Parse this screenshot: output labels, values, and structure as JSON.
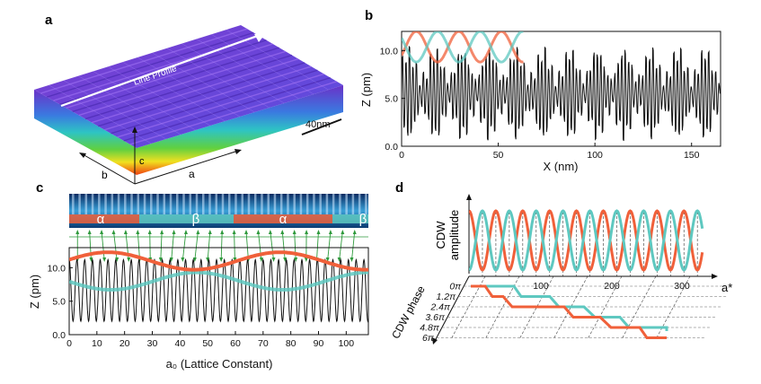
{
  "panels": {
    "a": {
      "label": "a",
      "annotation": "Line Profile",
      "scale_bar": "40nm",
      "axes": {
        "a": "a",
        "b": "b",
        "c": "c"
      }
    },
    "b": {
      "label": "b",
      "xlabel": "X (nm)",
      "ylabel": "Z (pm)",
      "xticks": [
        "0",
        "50",
        "100",
        "150"
      ],
      "yticks": [
        "0.0",
        "5.0",
        "10.0"
      ]
    },
    "c": {
      "label": "c",
      "domains": [
        "α",
        "β",
        "α",
        "β"
      ],
      "xlabel": "a₀ (Lattice Constant)",
      "ylabel": "Z (pm)",
      "xticks": [
        "0",
        "10",
        "20",
        "30",
        "40",
        "50",
        "60",
        "70",
        "80",
        "90",
        "100"
      ],
      "yticks": [
        "0.0",
        "5.0",
        "10.0"
      ]
    },
    "d": {
      "label": "d",
      "amplitude_label_line1": "CDW",
      "amplitude_label_line2": "amplitude",
      "phase_label": "CDW phase",
      "xaxis_label": "a*",
      "xticks": [
        "100",
        "200",
        "300"
      ],
      "phase_ticks": [
        "0π",
        "1.2π",
        "2.4π",
        "3.6π",
        "4.8π",
        "6π"
      ]
    }
  },
  "colors": {
    "orange": "#f0603a",
    "teal": "#5ec8c0",
    "green": "#2e9a3c",
    "black": "#111111"
  },
  "chart_data": [
    {
      "type": "line",
      "panel": "b",
      "title": "",
      "xlabel": "X (nm)",
      "ylabel": "Z (pm)",
      "xlim": [
        0,
        165
      ],
      "ylim": [
        0,
        12
      ],
      "series": [
        {
          "name": "",
          "color": "#111111",
          "description_values": {
            "period_nm": 1.8,
            "baseline": 5.5,
            "amplitude_min": 2.5,
            "amplitude_max": 5.5
          }
        },
        {
          "name": "",
          "color": "#f0603a",
          "x_range": [
            0,
            63
          ],
          "center": 10.4,
          "amplitude": 1.6,
          "period_nm": 22
        },
        {
          "name": "",
          "color": "#5ec8c0",
          "x_range": [
            0,
            63
          ],
          "center": 10.4,
          "amplitude": 1.6,
          "period_nm": 22,
          "phase": "opposite"
        }
      ]
    },
    {
      "type": "line",
      "panel": "c",
      "title": "",
      "xlabel": "a₀ (Lattice Constant)",
      "ylabel": "Z (pm)",
      "xlim": [
        0,
        108
      ],
      "ylim": [
        0,
        13
      ],
      "series": [
        {
          "name": "",
          "color": "#111111",
          "period_a0": 2.8,
          "center": 6.6,
          "amplitude": 4.8
        },
        {
          "name": "",
          "color": "#f0603a",
          "center": 11.0,
          "amplitude": 1.4,
          "period_a0": 62
        },
        {
          "name": "",
          "color": "#5ec8c0",
          "center": 8.0,
          "amplitude": 1.2,
          "period_a0": 62,
          "phase": "shifted"
        }
      ]
    },
    {
      "type": "line",
      "panel": "d",
      "title": "",
      "xlabel": "a*",
      "xlim": [
        0,
        330
      ],
      "series": [
        {
          "name": "",
          "color": "#f0603a",
          "period_a": 38
        },
        {
          "name": "",
          "color": "#5ec8c0",
          "period_a": 38,
          "phase": "opposite"
        }
      ]
    }
  ]
}
